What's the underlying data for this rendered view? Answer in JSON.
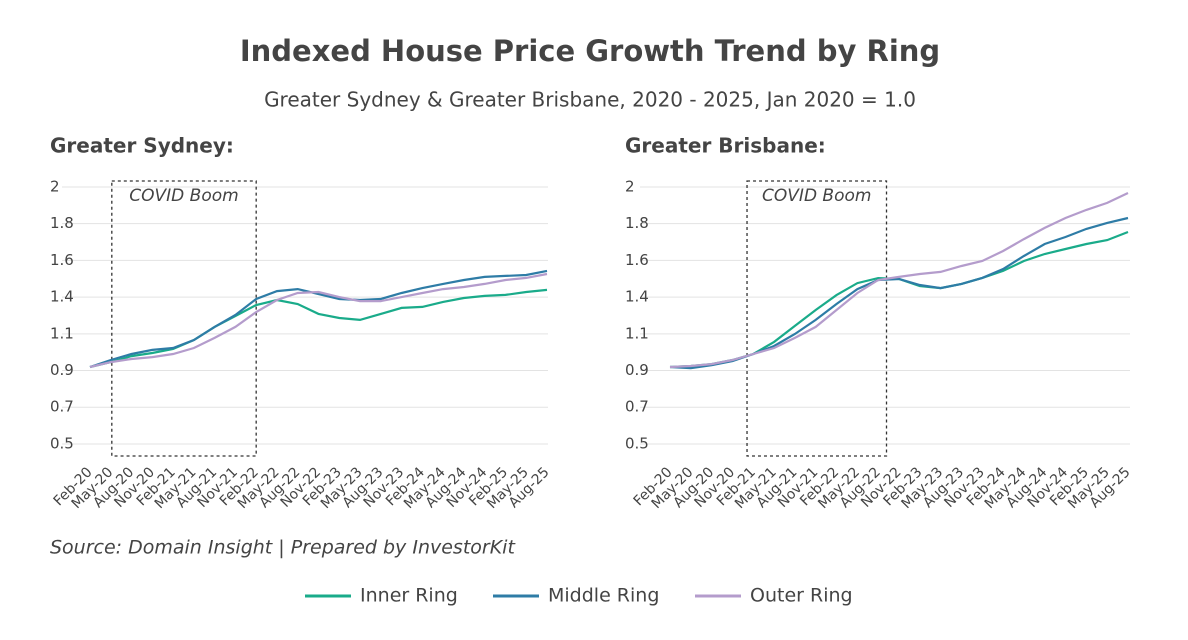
{
  "title": "Indexed House Price Growth Trend by Ring",
  "subtitle": "Greater Sydney & Greater Brisbane, 2020 - 2025, Jan 2020 = 1.0",
  "source": "Source: Domain Insight | Prepared by InvestorKit",
  "chart_data": [
    {
      "type": "line",
      "title": "Greater Sydney:",
      "annotation": "COVID Boom",
      "categories": [
        "Feb-20",
        "May-20",
        "Aug-20",
        "Nov-20",
        "Feb-21",
        "May-21",
        "Aug-21",
        "Nov-21",
        "Feb-22",
        "May-22",
        "Aug-22",
        "Nov-22",
        "Feb-23",
        "May-23",
        "Aug-23",
        "Nov-23",
        "Feb-24",
        "May-24",
        "Aug-24",
        "Nov-24",
        "Feb-25",
        "May-25",
        "Aug-25"
      ],
      "series": [
        {
          "name": "Inner Ring",
          "color": "#1aab8a",
          "values": [
            0.949,
            0.978,
            1.013,
            1.031,
            1.054,
            1.107,
            1.183,
            1.247,
            1.311,
            1.34,
            1.317,
            1.259,
            1.235,
            1.224,
            1.259,
            1.294,
            1.3,
            1.329,
            1.352,
            1.364,
            1.37,
            1.387,
            1.399
          ]
        },
        {
          "name": "Middle Ring",
          "color": "#2e7ca6",
          "values": [
            0.949,
            0.99,
            1.025,
            1.049,
            1.06,
            1.107,
            1.183,
            1.253,
            1.346,
            1.392,
            1.404,
            1.375,
            1.346,
            1.34,
            1.346,
            1.381,
            1.41,
            1.434,
            1.457,
            1.475,
            1.481,
            1.486,
            1.51
          ]
        },
        {
          "name": "Outer Ring",
          "color": "#b49ccc",
          "values": [
            0.949,
            0.978,
            0.996,
            1.007,
            1.025,
            1.06,
            1.119,
            1.183,
            1.27,
            1.34,
            1.381,
            1.387,
            1.357,
            1.334,
            1.334,
            1.357,
            1.381,
            1.404,
            1.416,
            1.434,
            1.457,
            1.469,
            1.492
          ]
        }
      ],
      "ylim": [
        0.4,
        2.05
      ],
      "yticks": [
        0.5,
        {
          "value": 0.7143,
          "label": "0.7"
        },
        {
          "value": 0.9286,
          "label": "0.9"
        },
        {
          "value": 1.1429,
          "label": "1.1"
        },
        {
          "value": 1.3571,
          "label": "1.4"
        },
        {
          "value": 1.5714,
          "label": "1.6"
        },
        {
          "value": 1.7857,
          "label": "1.8"
        },
        2
      ],
      "grid": true
    },
    {
      "type": "line",
      "title": "Greater Brisbane:",
      "annotation": "COVID Boom",
      "categories": [
        "Feb-20",
        "May-20",
        "Aug-20",
        "Nov-20",
        "Feb-21",
        "May-21",
        "Aug-21",
        "Nov-21",
        "Feb-22",
        "May-22",
        "Aug-22",
        "Nov-22",
        "Feb-23",
        "May-23",
        "Aug-23",
        "Nov-23",
        "Feb-24",
        "May-24",
        "Aug-24",
        "Nov-24",
        "Feb-25",
        "May-25",
        "Aug-25"
      ],
      "series": [
        {
          "name": "Inner Ring",
          "color": "#1aab8a",
          "values": [
            0.949,
            0.955,
            0.966,
            0.99,
            1.025,
            1.096,
            1.189,
            1.282,
            1.369,
            1.439,
            1.468,
            1.463,
            1.422,
            1.41,
            1.434,
            1.469,
            1.51,
            1.568,
            1.609,
            1.638,
            1.667,
            1.69,
            1.737
          ]
        },
        {
          "name": "Middle Ring",
          "color": "#2e7ca6",
          "values": [
            0.949,
            0.943,
            0.96,
            0.984,
            1.025,
            1.072,
            1.142,
            1.224,
            1.317,
            1.404,
            1.457,
            1.463,
            1.428,
            1.41,
            1.434,
            1.469,
            1.521,
            1.597,
            1.667,
            1.708,
            1.755,
            1.79,
            1.819
          ]
        },
        {
          "name": "Outer Ring",
          "color": "#b49ccc",
          "values": [
            0.949,
            0.955,
            0.966,
            0.99,
            1.025,
            1.06,
            1.119,
            1.183,
            1.282,
            1.381,
            1.457,
            1.475,
            1.492,
            1.504,
            1.539,
            1.568,
            1.626,
            1.696,
            1.761,
            1.819,
            1.866,
            1.907,
            1.965
          ]
        }
      ],
      "ylim": [
        0.4,
        2.05
      ],
      "yticks": [
        0.5,
        {
          "value": 0.7143,
          "label": "0.7"
        },
        {
          "value": 0.9286,
          "label": "0.9"
        },
        {
          "value": 1.1429,
          "label": "1.1"
        },
        {
          "value": 1.3571,
          "label": "1.4"
        },
        {
          "value": 1.5714,
          "label": "1.6"
        },
        {
          "value": 1.7857,
          "label": "1.8"
        },
        2
      ],
      "grid": true
    }
  ]
}
